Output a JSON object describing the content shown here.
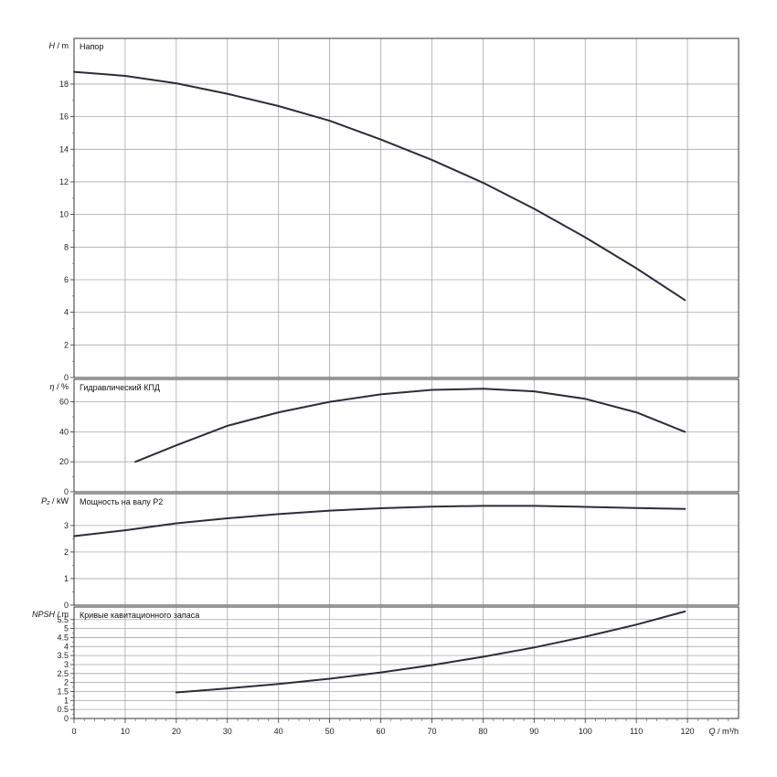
{
  "chart_data": {
    "type": "line",
    "x_axis": {
      "label_var": "Q",
      "label_unit": " / m³/h",
      "range": [
        0,
        130
      ],
      "ticks": [
        0,
        10,
        20,
        30,
        40,
        50,
        60,
        70,
        80,
        90,
        100,
        110,
        120
      ]
    },
    "grid": true,
    "panels": [
      {
        "id": "head",
        "title": "Напор",
        "ylabel_var": "H",
        "ylabel_unit": " / m",
        "ylim": [
          0,
          20.8
        ],
        "ticks": [
          0,
          2,
          4,
          6,
          8,
          10,
          12,
          14,
          16,
          18
        ],
        "tick_labels": [
          "0",
          "2",
          "4",
          "6",
          "8",
          "10",
          "12",
          "14",
          "16",
          "18"
        ],
        "series": [
          {
            "x": [
              0,
              10,
              20,
              30,
              40,
              50,
              60,
              70,
              80,
              90,
              100,
              110,
              119.5
            ],
            "y": [
              18.75,
              18.5,
              18.05,
              17.4,
              16.65,
              15.75,
              14.6,
              13.35,
              11.95,
              10.35,
              8.6,
              6.7,
              4.75
            ]
          }
        ]
      },
      {
        "id": "efficiency",
        "title": "Гидравлический КПД",
        "ylabel_var": "η",
        "ylabel_unit": " / %",
        "ylim": [
          0,
          75
        ],
        "ticks": [
          0,
          20,
          40,
          60
        ],
        "tick_labels": [
          "0",
          "20",
          "40",
          "60"
        ],
        "series": [
          {
            "x": [
              12,
              20,
              30,
              40,
              50,
              60,
              70,
              80,
              90,
              100,
              110,
              119.5
            ],
            "y": [
              20,
              31,
              44,
              53,
              60,
              65,
              68,
              68.7,
              67,
              62,
              53,
              40
            ]
          }
        ]
      },
      {
        "id": "power",
        "title": "Мощность на валу P2",
        "ylabel_var": "P₂",
        "ylabel_unit": " / kW",
        "ylim": [
          0,
          4.2
        ],
        "ticks": [
          0,
          1,
          2,
          3
        ],
        "tick_labels": [
          "0",
          "1",
          "2",
          "3"
        ],
        "series": [
          {
            "x": [
              0,
              10,
              20,
              30,
              40,
              50,
              60,
              70,
              80,
              90,
              100,
              110,
              119.5
            ],
            "y": [
              2.6,
              2.82,
              3.08,
              3.27,
              3.43,
              3.56,
              3.65,
              3.71,
              3.74,
              3.74,
              3.7,
              3.66,
              3.62
            ]
          }
        ]
      },
      {
        "id": "npsh",
        "title": "Кривые кавитационного запаса",
        "ylabel_var": "NPSH",
        "ylabel_unit": " / m",
        "ylim": [
          0,
          6.2
        ],
        "ticks": [
          0,
          0.5,
          1,
          1.5,
          2,
          2.5,
          3,
          3.5,
          4,
          4.5,
          5,
          5.5
        ],
        "tick_labels": [
          "0",
          "0.5",
          "1",
          "1.5",
          "2",
          "2.5",
          "3",
          "3.5",
          "4",
          "4.5",
          "5",
          "5.5"
        ],
        "series": [
          {
            "x": [
              20,
              30,
              40,
              50,
              60,
              70,
              80,
              90,
              100,
              110,
              119.5
            ],
            "y": [
              1.45,
              1.67,
              1.92,
              2.21,
              2.56,
              2.97,
              3.43,
              3.95,
              4.55,
              5.22,
              5.95
            ]
          }
        ]
      }
    ]
  }
}
